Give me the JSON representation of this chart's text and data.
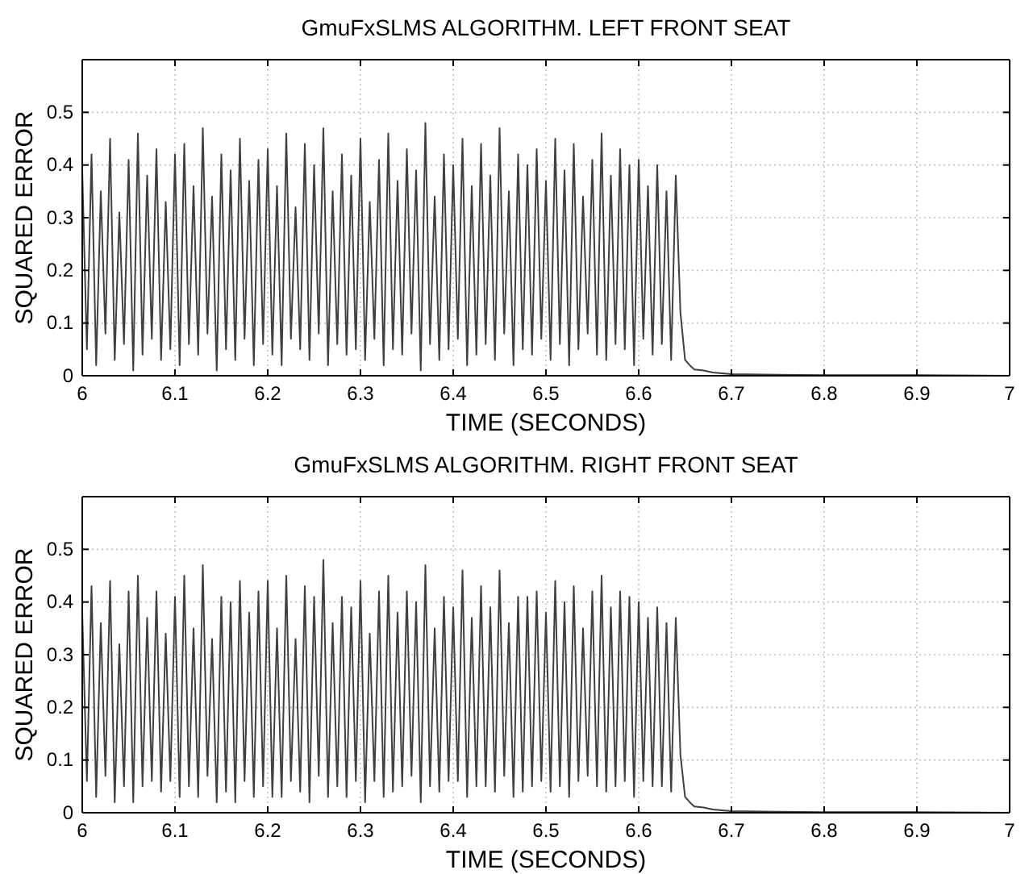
{
  "chart_data": [
    {
      "type": "line",
      "title": "GmuFxSLMS ALGORITHM. LEFT FRONT SEAT",
      "xlabel": "TIME (SECONDS)",
      "ylabel": "SQUARED ERROR",
      "xlim": [
        6,
        7
      ],
      "ylim": [
        0,
        0.6
      ],
      "xticks": [
        6,
        6.1,
        6.2,
        6.3,
        6.4,
        6.5,
        6.6,
        6.7,
        6.8,
        6.9,
        7
      ],
      "yticks": [
        0,
        0.1,
        0.2,
        0.3,
        0.4,
        0.5,
        {
          "value": 0.6,
          "label": null
        }
      ],
      "grid": true,
      "x": [
        6,
        6.005,
        6.01,
        6.015,
        6.02,
        6.025,
        6.03,
        6.035,
        6.04,
        6.045,
        6.05,
        6.055,
        6.06,
        6.065,
        6.07,
        6.075,
        6.08,
        6.085,
        6.09,
        6.095,
        6.1,
        6.105,
        6.11,
        6.115,
        6.12,
        6.125,
        6.13,
        6.135,
        6.14,
        6.145,
        6.15,
        6.155,
        6.16,
        6.165,
        6.17,
        6.175,
        6.18,
        6.185,
        6.19,
        6.195,
        6.2,
        6.205,
        6.21,
        6.215,
        6.22,
        6.225,
        6.23,
        6.235,
        6.24,
        6.245,
        6.25,
        6.255,
        6.26,
        6.265,
        6.27,
        6.275,
        6.28,
        6.285,
        6.29,
        6.295,
        6.3,
        6.305,
        6.31,
        6.315,
        6.32,
        6.325,
        6.33,
        6.335,
        6.34,
        6.345,
        6.35,
        6.355,
        6.36,
        6.365,
        6.37,
        6.375,
        6.38,
        6.385,
        6.39,
        6.395,
        6.4,
        6.405,
        6.41,
        6.415,
        6.42,
        6.425,
        6.43,
        6.435,
        6.44,
        6.445,
        6.45,
        6.455,
        6.46,
        6.465,
        6.47,
        6.475,
        6.48,
        6.485,
        6.49,
        6.495,
        6.5,
        6.505,
        6.51,
        6.515,
        6.52,
        6.525,
        6.53,
        6.535,
        6.54,
        6.545,
        6.55,
        6.555,
        6.56,
        6.565,
        6.57,
        6.575,
        6.58,
        6.585,
        6.59,
        6.595,
        6.6,
        6.605,
        6.61,
        6.615,
        6.62,
        6.625,
        6.63,
        6.635,
        6.64,
        6.645,
        6.65,
        6.655,
        6.66,
        6.67,
        6.68,
        6.7,
        6.75,
        6.8,
        6.9,
        7
      ],
      "series": [
        {
          "color": "#404040",
          "values": [
            0.39,
            0.05,
            0.42,
            0.02,
            0.35,
            0.08,
            0.45,
            0.03,
            0.31,
            0.06,
            0.41,
            0.01,
            0.46,
            0.04,
            0.38,
            0.07,
            0.43,
            0.03,
            0.33,
            0.05,
            0.42,
            0.02,
            0.44,
            0.06,
            0.36,
            0.04,
            0.47,
            0.08,
            0.34,
            0.01,
            0.42,
            0.05,
            0.39,
            0.03,
            0.45,
            0.07,
            0.37,
            0.02,
            0.41,
            0.06,
            0.43,
            0.04,
            0.36,
            0.02,
            0.46,
            0.07,
            0.32,
            0.05,
            0.44,
            0.03,
            0.4,
            0.08,
            0.47,
            0.02,
            0.35,
            0.06,
            0.42,
            0.04,
            0.38,
            0.05,
            0.45,
            0.03,
            0.33,
            0.07,
            0.41,
            0.02,
            0.46,
            0.05,
            0.37,
            0.04,
            0.43,
            0.08,
            0.39,
            0.01,
            0.48,
            0.06,
            0.34,
            0.03,
            0.42,
            0.05,
            0.4,
            0.07,
            0.45,
            0.02,
            0.36,
            0.04,
            0.44,
            0.06,
            0.38,
            0.03,
            0.47,
            0.08,
            0.35,
            0.02,
            0.42,
            0.05,
            0.4,
            0.04,
            0.43,
            0.07,
            0.37,
            0.03,
            0.45,
            0.06,
            0.39,
            0.02,
            0.44,
            0.05,
            0.34,
            0.08,
            0.41,
            0.04,
            0.46,
            0.03,
            0.38,
            0.06,
            0.43,
            0.05,
            0.4,
            0.02,
            0.41,
            0.07,
            0.36,
            0.04,
            0.4,
            0.06,
            0.35,
            0.03,
            0.38,
            0.12,
            0.03,
            0.02,
            0.012,
            0.01,
            0.006,
            0.003,
            0.002,
            0.001,
            0.001,
            0
          ]
        }
      ]
    },
    {
      "type": "line",
      "title": "GmuFxSLMS ALGORITHM. RIGHT FRONT SEAT",
      "xlabel": "TIME (SECONDS)",
      "ylabel": "SQUARED ERROR",
      "xlim": [
        6,
        7
      ],
      "ylim": [
        0,
        0.6
      ],
      "xticks": [
        6,
        6.1,
        6.2,
        6.3,
        6.4,
        6.5,
        6.6,
        6.7,
        6.8,
        6.9,
        7
      ],
      "yticks": [
        0,
        0.1,
        0.2,
        0.3,
        0.4,
        0.5,
        {
          "value": 0.6,
          "label": null
        }
      ],
      "grid": true,
      "x": [
        6,
        6.005,
        6.01,
        6.015,
        6.02,
        6.025,
        6.03,
        6.035,
        6.04,
        6.045,
        6.05,
        6.055,
        6.06,
        6.065,
        6.07,
        6.075,
        6.08,
        6.085,
        6.09,
        6.095,
        6.1,
        6.105,
        6.11,
        6.115,
        6.12,
        6.125,
        6.13,
        6.135,
        6.14,
        6.145,
        6.15,
        6.155,
        6.16,
        6.165,
        6.17,
        6.175,
        6.18,
        6.185,
        6.19,
        6.195,
        6.2,
        6.205,
        6.21,
        6.215,
        6.22,
        6.225,
        6.23,
        6.235,
        6.24,
        6.245,
        6.25,
        6.255,
        6.26,
        6.265,
        6.27,
        6.275,
        6.28,
        6.285,
        6.29,
        6.295,
        6.3,
        6.305,
        6.31,
        6.315,
        6.32,
        6.325,
        6.33,
        6.335,
        6.34,
        6.345,
        6.35,
        6.355,
        6.36,
        6.365,
        6.37,
        6.375,
        6.38,
        6.385,
        6.39,
        6.395,
        6.4,
        6.405,
        6.41,
        6.415,
        6.42,
        6.425,
        6.43,
        6.435,
        6.44,
        6.445,
        6.45,
        6.455,
        6.46,
        6.465,
        6.47,
        6.475,
        6.48,
        6.485,
        6.49,
        6.495,
        6.5,
        6.505,
        6.51,
        6.515,
        6.52,
        6.525,
        6.53,
        6.535,
        6.54,
        6.545,
        6.55,
        6.555,
        6.56,
        6.565,
        6.57,
        6.575,
        6.58,
        6.585,
        6.59,
        6.595,
        6.6,
        6.605,
        6.61,
        6.615,
        6.62,
        6.625,
        6.63,
        6.635,
        6.64,
        6.645,
        6.65,
        6.655,
        6.66,
        6.67,
        6.68,
        6.7,
        6.75,
        6.8,
        6.9,
        7
      ],
      "series": [
        {
          "color": "#404040",
          "values": [
            0.38,
            0.06,
            0.43,
            0.03,
            0.36,
            0.07,
            0.44,
            0.02,
            0.32,
            0.05,
            0.42,
            0.02,
            0.45,
            0.05,
            0.37,
            0.06,
            0.42,
            0.04,
            0.34,
            0.06,
            0.41,
            0.03,
            0.45,
            0.05,
            0.35,
            0.03,
            0.47,
            0.07,
            0.33,
            0.02,
            0.41,
            0.04,
            0.4,
            0.02,
            0.44,
            0.06,
            0.38,
            0.03,
            0.42,
            0.05,
            0.44,
            0.03,
            0.35,
            0.03,
            0.45,
            0.06,
            0.33,
            0.04,
            0.43,
            0.02,
            0.41,
            0.07,
            0.48,
            0.03,
            0.36,
            0.05,
            0.41,
            0.03,
            0.39,
            0.06,
            0.44,
            0.02,
            0.34,
            0.06,
            0.42,
            0.03,
            0.45,
            0.04,
            0.38,
            0.05,
            0.42,
            0.07,
            0.4,
            0.02,
            0.47,
            0.05,
            0.35,
            0.04,
            0.41,
            0.06,
            0.39,
            0.06,
            0.46,
            0.03,
            0.37,
            0.05,
            0.43,
            0.05,
            0.39,
            0.04,
            0.46,
            0.07,
            0.36,
            0.03,
            0.41,
            0.04,
            0.41,
            0.05,
            0.42,
            0.06,
            0.38,
            0.04,
            0.44,
            0.05,
            0.4,
            0.03,
            0.43,
            0.06,
            0.35,
            0.07,
            0.42,
            0.05,
            0.45,
            0.04,
            0.39,
            0.05,
            0.42,
            0.06,
            0.41,
            0.03,
            0.4,
            0.06,
            0.37,
            0.05,
            0.39,
            0.05,
            0.36,
            0.04,
            0.37,
            0.11,
            0.03,
            0.02,
            0.012,
            0.01,
            0.006,
            0.003,
            0.002,
            0.001,
            0.001,
            0
          ]
        }
      ]
    }
  ]
}
